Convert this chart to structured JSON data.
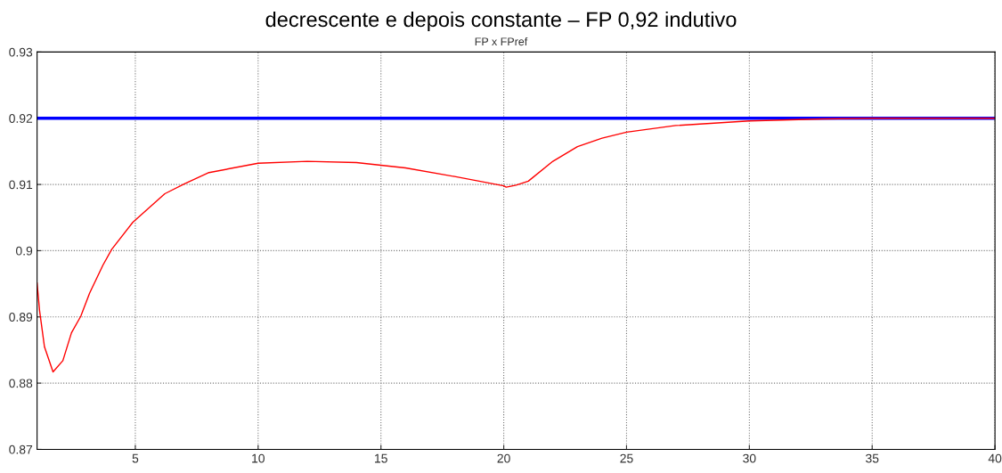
{
  "chart_data": {
    "type": "line",
    "title": "decrescente e depois constante – FP 0,92 indutivo",
    "subtitle": "FP x FPref",
    "series": [
      {
        "color": "#0000ff",
        "x": [
          1,
          40
        ],
        "values": [
          0.92,
          0.92
        ]
      },
      {
        "color": "#ff0000",
        "x": [
          1,
          1.1,
          1.3,
          1.65,
          2.05,
          2.4,
          2.78,
          3.14,
          3.68,
          4.04,
          4.9,
          6.2,
          7,
          8,
          10,
          12,
          14,
          16,
          18,
          19,
          20,
          20.1,
          20.5,
          21,
          22,
          23,
          24,
          25,
          27,
          30,
          33,
          35,
          40
        ],
        "values": [
          0.8951,
          0.891,
          0.8855,
          0.8817,
          0.8834,
          0.8876,
          0.8901,
          0.8936,
          0.8978,
          0.9002,
          0.9043,
          0.9086,
          0.9101,
          0.9118,
          0.9132,
          0.9135,
          0.9133,
          0.9125,
          0.9112,
          0.9105,
          0.9098,
          0.9096,
          0.9099,
          0.9105,
          0.9135,
          0.9157,
          0.917,
          0.9179,
          0.9189,
          0.9196,
          0.9199,
          0.92,
          0.92
        ]
      }
    ],
    "xlim": [
      1,
      40
    ],
    "xticks": [
      5,
      10,
      15,
      20,
      25,
      30,
      35,
      40
    ],
    "ylim": [
      0.87,
      0.93
    ],
    "yticks": [
      0.87,
      0.88,
      0.89,
      0.9,
      0.91,
      0.92,
      0.93
    ],
    "grid": true,
    "line_style": "solid",
    "marker": "none"
  }
}
